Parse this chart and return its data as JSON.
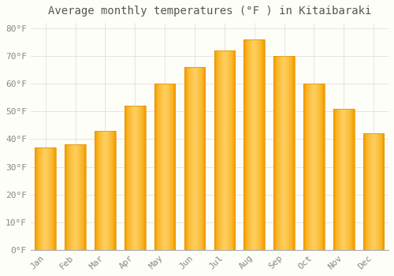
{
  "title": "Average monthly temperatures (°F ) in Kitaibaraki",
  "months": [
    "Jan",
    "Feb",
    "Mar",
    "Apr",
    "May",
    "Jun",
    "Jul",
    "Aug",
    "Sep",
    "Oct",
    "Nov",
    "Dec"
  ],
  "values": [
    37,
    38,
    43,
    52,
    60,
    66,
    72,
    76,
    70,
    60,
    51,
    42
  ],
  "bar_color_center": "#FFB833",
  "bar_color_edge": "#F5A000",
  "background_color": "#FEFEF8",
  "grid_color": "#E0E0E0",
  "ylim": [
    0,
    82
  ],
  "yticks": [
    0,
    10,
    20,
    30,
    40,
    50,
    60,
    70,
    80
  ],
  "title_fontsize": 10,
  "tick_fontsize": 8,
  "font_family": "monospace",
  "tick_color": "#888888",
  "title_color": "#555555",
  "spine_color": "#AAAAAA"
}
